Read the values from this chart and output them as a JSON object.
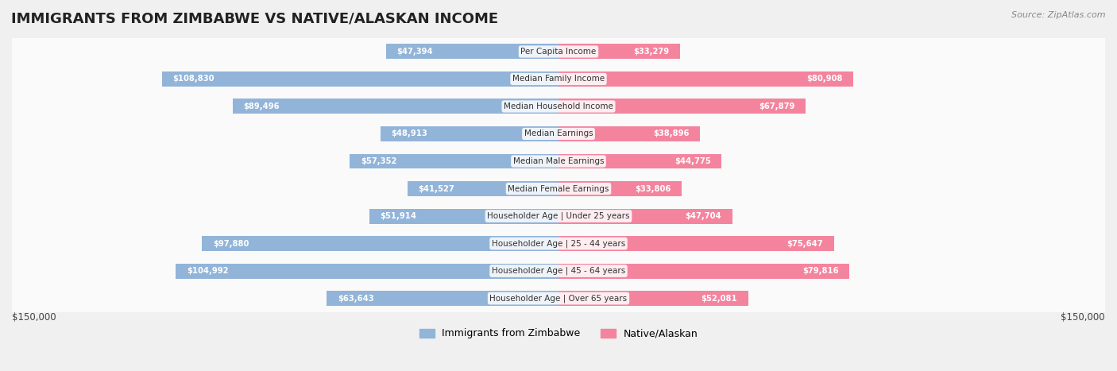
{
  "title": "IMMIGRANTS FROM ZIMBABWE VS NATIVE/ALASKAN INCOME",
  "source": "Source: ZipAtlas.com",
  "categories": [
    "Per Capita Income",
    "Median Family Income",
    "Median Household Income",
    "Median Earnings",
    "Median Male Earnings",
    "Median Female Earnings",
    "Householder Age | Under 25 years",
    "Householder Age | 25 - 44 years",
    "Householder Age | 45 - 64 years",
    "Householder Age | Over 65 years"
  ],
  "zimbabwe_values": [
    47394,
    108830,
    89496,
    48913,
    57352,
    41527,
    51914,
    97880,
    104992,
    63643
  ],
  "native_values": [
    33279,
    80908,
    67879,
    38896,
    44775,
    33806,
    47704,
    75647,
    79816,
    52081
  ],
  "zimbabwe_labels": [
    "$47,394",
    "$108,830",
    "$89,496",
    "$48,913",
    "$57,352",
    "$41,527",
    "$51,914",
    "$97,880",
    "$104,992",
    "$63,643"
  ],
  "native_labels": [
    "$33,279",
    "$80,908",
    "$67,879",
    "$38,896",
    "$44,775",
    "$33,806",
    "$47,704",
    "$75,647",
    "$79,816",
    "$52,081"
  ],
  "zimbabwe_color": "#92b4d8",
  "native_color": "#f4849e",
  "zimbabwe_color_dark": "#6fa8d0",
  "native_color_dark": "#f06080",
  "max_value": 150000,
  "bar_height": 0.55,
  "bg_color": "#f0f0f0",
  "row_bg_light": "#fafafa",
  "row_bg_dark": "#f0f0f0",
  "legend_zimbabwe": "Immigrants from Zimbabwe",
  "legend_native": "Native/Alaskan",
  "xlabel_left": "$150,000",
  "xlabel_right": "$150,000"
}
